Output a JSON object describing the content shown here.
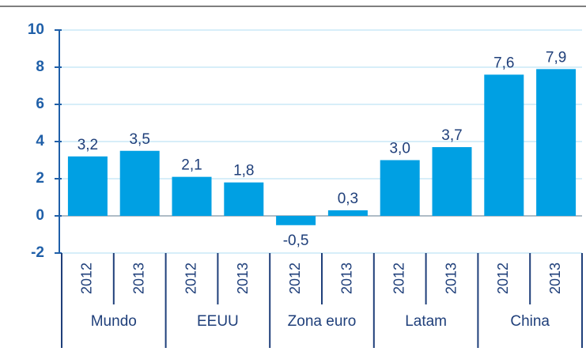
{
  "chart_data": {
    "type": "bar",
    "categories": [
      "2012",
      "2013",
      "2012",
      "2013",
      "2012",
      "2013",
      "2012",
      "2013",
      "2012",
      "2013"
    ],
    "groups": [
      "Mundo",
      "EEUU",
      "Zona euro",
      "Latam",
      "China"
    ],
    "values": [
      3.2,
      3.5,
      2.1,
      1.8,
      -0.5,
      0.3,
      3.0,
      3.7,
      7.6,
      7.9
    ],
    "value_labels": [
      "3,2",
      "3,5",
      "2,1",
      "1,8",
      "-0,5",
      "0,3",
      "3,0",
      "3,7",
      "7,6",
      "7,9"
    ],
    "color": "#00a0e3",
    "ylim": [
      -2,
      10
    ],
    "yticks": [
      -2,
      0,
      2,
      4,
      6,
      8,
      10
    ],
    "grid": true
  }
}
